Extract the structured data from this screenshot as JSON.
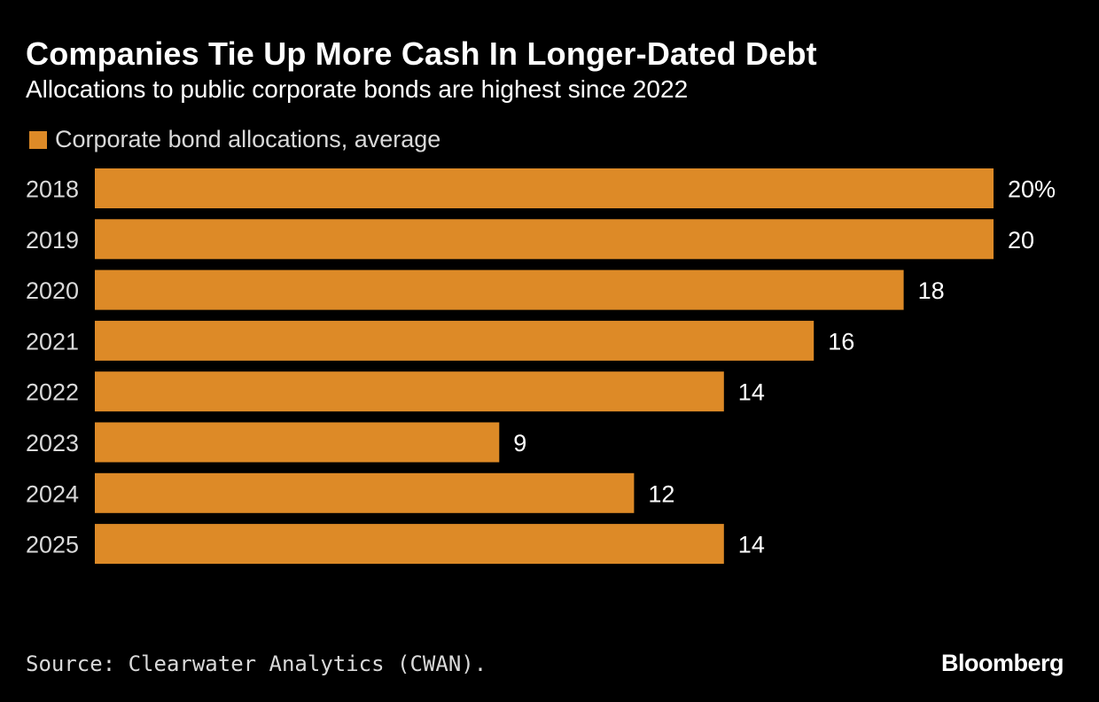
{
  "title": "Companies Tie Up More Cash In Longer-Dated Debt",
  "subtitle": "Allocations to public corporate bonds are highest since 2022",
  "legend_label": "Corporate bond allocations, average",
  "source": "Source: Clearwater Analytics (CWAN).",
  "brand": "Bloomberg",
  "colors": {
    "background": "#000000",
    "bar": "#DD8A27",
    "text": "#ffffff",
    "muted_text": "#d9d9d9"
  },
  "chart_data": {
    "type": "bar",
    "orientation": "horizontal",
    "categories": [
      "2018",
      "2019",
      "2020",
      "2021",
      "2022",
      "2023",
      "2024",
      "2025"
    ],
    "series": [
      {
        "name": "Corporate bond allocations, average",
        "values": [
          20,
          20,
          18,
          16,
          14,
          9,
          12,
          14
        ]
      }
    ],
    "value_labels": [
      "20%",
      "20",
      "18",
      "16",
      "14",
      "9",
      "12",
      "14"
    ],
    "unit": "%",
    "xlim": [
      0,
      20
    ],
    "grid": false,
    "legend_position": "top-left"
  }
}
